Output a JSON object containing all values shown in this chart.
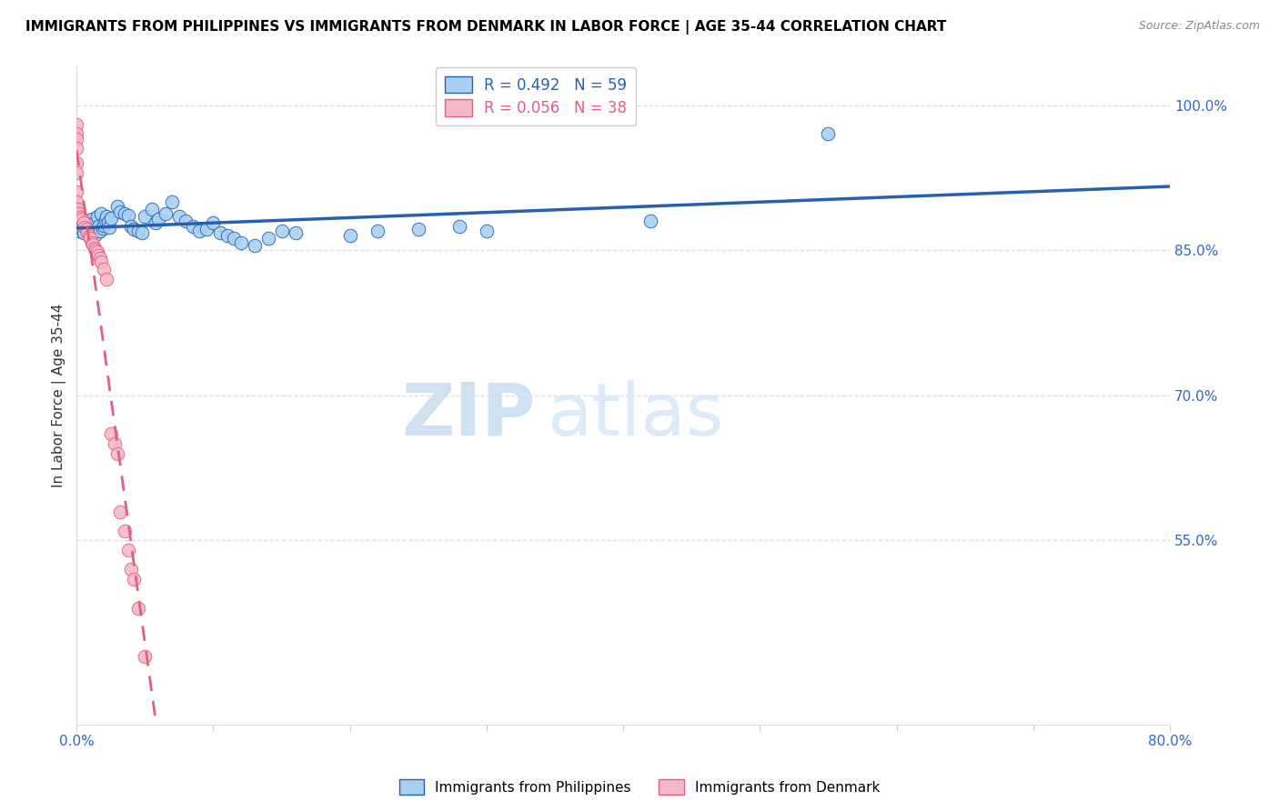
{
  "title": "IMMIGRANTS FROM PHILIPPINES VS IMMIGRANTS FROM DENMARK IN LABOR FORCE | AGE 35-44 CORRELATION CHART",
  "source": "Source: ZipAtlas.com",
  "ylabel": "In Labor Force | Age 35-44",
  "xmin": 0.0,
  "xmax": 0.8,
  "ymin": 0.36,
  "ymax": 1.04,
  "r_philippines": 0.492,
  "n_philippines": 59,
  "r_denmark": 0.056,
  "n_denmark": 38,
  "philippines_color": "#A8D0F0",
  "denmark_color": "#F5B8C8",
  "philippines_line_color": "#2860B0",
  "denmark_line_color": "#E06080",
  "legend_label_philippines": "Immigrants from Philippines",
  "legend_label_denmark": "Immigrants from Denmark",
  "watermark_zip": "ZIP",
  "watermark_atlas": "atlas",
  "philippines_x": [
    0.002,
    0.003,
    0.004,
    0.005,
    0.006,
    0.007,
    0.008,
    0.009,
    0.01,
    0.011,
    0.012,
    0.013,
    0.014,
    0.015,
    0.016,
    0.017,
    0.018,
    0.019,
    0.02,
    0.021,
    0.022,
    0.023,
    0.024,
    0.025,
    0.03,
    0.032,
    0.035,
    0.038,
    0.04,
    0.042,
    0.045,
    0.048,
    0.05,
    0.055,
    0.058,
    0.06,
    0.065,
    0.07,
    0.075,
    0.08,
    0.085,
    0.09,
    0.095,
    0.1,
    0.105,
    0.11,
    0.115,
    0.12,
    0.13,
    0.14,
    0.15,
    0.16,
    0.2,
    0.22,
    0.25,
    0.28,
    0.3,
    0.42,
    0.55
  ],
  "philippines_y": [
    0.87,
    0.875,
    0.872,
    0.868,
    0.88,
    0.878,
    0.873,
    0.869,
    0.865,
    0.882,
    0.877,
    0.871,
    0.866,
    0.885,
    0.875,
    0.87,
    0.888,
    0.873,
    0.876,
    0.881,
    0.885,
    0.879,
    0.874,
    0.883,
    0.895,
    0.89,
    0.888,
    0.886,
    0.875,
    0.872,
    0.87,
    0.868,
    0.885,
    0.892,
    0.878,
    0.882,
    0.888,
    0.9,
    0.885,
    0.88,
    0.875,
    0.87,
    0.872,
    0.878,
    0.868,
    0.865,
    0.862,
    0.858,
    0.855,
    0.862,
    0.87,
    0.868,
    0.865,
    0.87,
    0.872,
    0.875,
    0.87,
    0.88,
    0.97
  ],
  "denmark_x": [
    0.0,
    0.0,
    0.0,
    0.0,
    0.0,
    0.0,
    0.0,
    0.0,
    0.001,
    0.002,
    0.003,
    0.004,
    0.005,
    0.006,
    0.007,
    0.008,
    0.009,
    0.01,
    0.011,
    0.012,
    0.013,
    0.014,
    0.015,
    0.016,
    0.017,
    0.018,
    0.02,
    0.022,
    0.025,
    0.028,
    0.03,
    0.032,
    0.035,
    0.038,
    0.04,
    0.042,
    0.045,
    0.05
  ],
  "denmark_y": [
    0.98,
    0.97,
    0.965,
    0.955,
    0.94,
    0.93,
    0.91,
    0.9,
    0.892,
    0.888,
    0.884,
    0.882,
    0.878,
    0.874,
    0.872,
    0.868,
    0.864,
    0.862,
    0.858,
    0.856,
    0.852,
    0.85,
    0.848,
    0.845,
    0.842,
    0.838,
    0.83,
    0.82,
    0.66,
    0.65,
    0.64,
    0.58,
    0.56,
    0.54,
    0.52,
    0.51,
    0.48,
    0.43
  ]
}
